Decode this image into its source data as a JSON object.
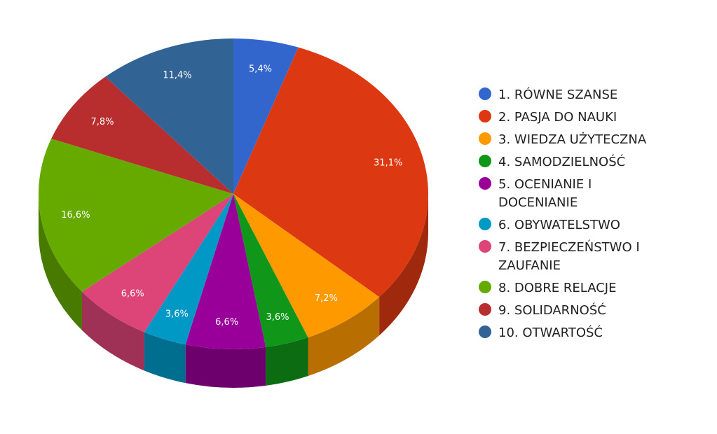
{
  "chart_data": {
    "type": "pie",
    "title": "",
    "legend_position": "right",
    "categories": [
      "1. RÓWNE SZANSE",
      "2. PASJA DO NAUKI",
      "3. WIEDZA UŻYTECZNA",
      "4. SAMODZIELNOŚĆ",
      "5. OCENIANIE I DOCENIANIE",
      "6. OBYWATELSTWO",
      "7. BEZPIECZEŃSTWO I ZAUFANIE",
      "8. DOBRE RELACJE",
      "9. SOLIDARNOŚĆ",
      "10. OTWARTOŚĆ"
    ],
    "legend_lines": [
      [
        "1. RÓWNE SZANSE"
      ],
      [
        "2. PASJA DO NAUKI"
      ],
      [
        "3. WIEDZA UŻYTECZNA"
      ],
      [
        "4. SAMODZIELNOŚĆ"
      ],
      [
        "5. OCENIANIE I",
        "DOCENIANIE"
      ],
      [
        "6. OBYWATELSTWO"
      ],
      [
        "7. BEZPIECZEŃSTWO I",
        "ZAUFANIE"
      ],
      [
        "8. DOBRE RELACJE"
      ],
      [
        "9. SOLIDARNOŚĆ"
      ],
      [
        "10. OTWARTOŚĆ"
      ]
    ],
    "values": [
      5.4,
      31.1,
      7.2,
      3.6,
      6.6,
      3.6,
      6.6,
      16.6,
      7.8,
      11.4
    ],
    "data_labels": [
      "5,4%",
      "31,1%",
      "7,2%",
      "3,6%",
      "6,6%",
      "3,6%",
      "6,6%",
      "16,6%",
      "7,8%",
      "11,4%"
    ],
    "colors": [
      "#3366cc",
      "#dc3912",
      "#ff9900",
      "#109618",
      "#990099",
      "#0099c6",
      "#dd4477",
      "#66aa00",
      "#b82e2e",
      "#316395"
    ]
  }
}
